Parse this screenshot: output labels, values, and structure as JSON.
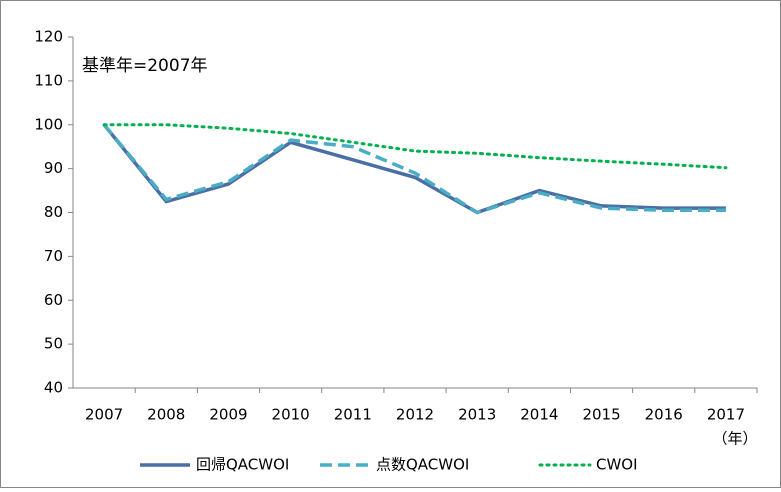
{
  "chart_data": {
    "type": "line",
    "annotation": "基準年=2007年",
    "x_label": "（年）",
    "categories": [
      "2007",
      "2008",
      "2009",
      "2010",
      "2011",
      "2012",
      "2013",
      "2014",
      "2015",
      "2016",
      "2017"
    ],
    "series": [
      {
        "name": "回帰QACWOI",
        "color": "#4a6fa5",
        "style": "solid",
        "values": [
          100,
          82.5,
          86.5,
          96,
          92,
          88,
          80,
          85,
          81.5,
          81,
          81
        ]
      },
      {
        "name": "点数QACWOI",
        "color": "#4bacc6",
        "style": "dashed",
        "values": [
          100,
          83,
          87,
          96.5,
          95,
          89,
          80,
          84.5,
          81,
          80.5,
          80.5
        ]
      },
      {
        "name": "CWOI",
        "color": "#00b050",
        "style": "dotted",
        "values": [
          100,
          100,
          99.2,
          98,
          96,
          94,
          93.5,
          92.5,
          91.7,
          91,
          90.2
        ]
      }
    ],
    "ylim": [
      40,
      120
    ],
    "yticks": [
      40,
      50,
      60,
      70,
      80,
      90,
      100,
      110,
      120
    ],
    "grid": false
  }
}
